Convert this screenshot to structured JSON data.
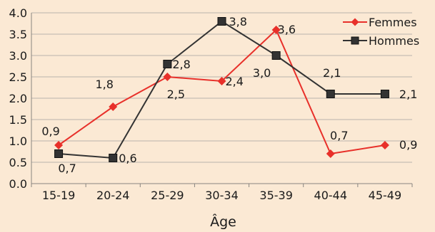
{
  "chart_data": {
    "type": "line",
    "categories": [
      "15-19",
      "20-24",
      "25-29",
      "30-34",
      "35-39",
      "40-44",
      "45-49"
    ],
    "series": [
      {
        "name": "Femmes",
        "color": "#e8302a",
        "marker": "diamond",
        "values": [
          0.9,
          1.8,
          2.5,
          2.4,
          3.6,
          0.7,
          0.9
        ],
        "labels": [
          "0,9",
          "1,8",
          "2,5",
          "2,4",
          "3,6",
          "0,7",
          "0,9"
        ]
      },
      {
        "name": "Hommes",
        "color": "#333333",
        "marker": "square",
        "values": [
          0.7,
          0.6,
          2.8,
          3.8,
          3.0,
          2.1,
          2.1
        ],
        "labels": [
          "0,7",
          "0,6",
          "2,8",
          "3,8",
          "3,0",
          "2,1",
          "2,1"
        ]
      }
    ],
    "y_ticks": [
      "0.0",
      "0.5",
      "1.0",
      "1.5",
      "2.0",
      "2.5",
      "3.0",
      "3.5",
      "4.0"
    ],
    "ylim": [
      0,
      4
    ],
    "xlabel": "Âge",
    "ylabel": "",
    "title": "",
    "grid": "horizontal",
    "legend_position": "top-right",
    "background": "#fbe9d4"
  }
}
